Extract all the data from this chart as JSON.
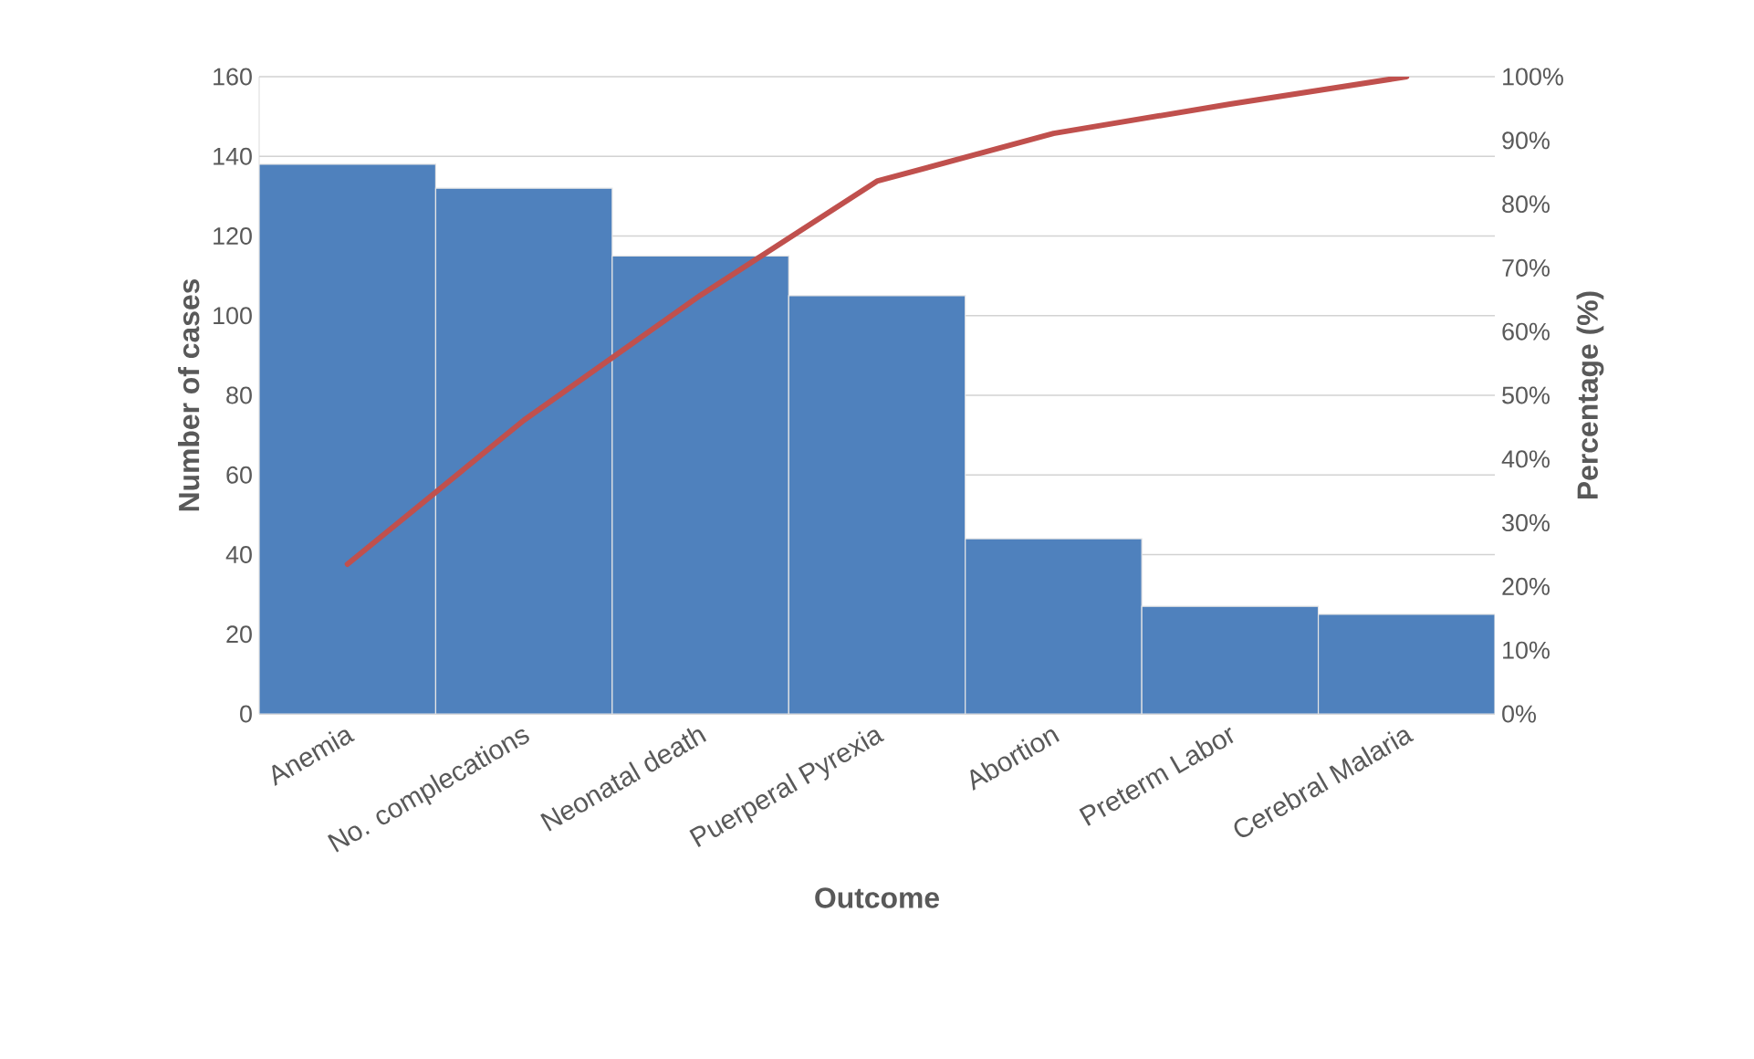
{
  "chart_data": {
    "type": "bar",
    "xlabel": "Outcome",
    "ylabel": "Number of cases",
    "y2label": "Percentage (%)",
    "categories": [
      "Anemia",
      "No. complecations",
      "Neonatal death",
      "Puerperal Pyrexia",
      "Abortion",
      "Preterm Labor",
      "Cerebral Malaria"
    ],
    "series": [
      {
        "color": "#4f81bd",
        "values": [
          138,
          132,
          115,
          105,
          44,
          27,
          25
        ]
      },
      {
        "type": "line",
        "axis": "y2",
        "color": "#c0504d",
        "values": [
          23.5,
          46.1,
          65.7,
          83.6,
          91.1,
          95.7,
          100
        ]
      }
    ],
    "ylim": [
      0,
      160
    ],
    "yticks": [
      0,
      20,
      40,
      60,
      80,
      100,
      120,
      140,
      160
    ],
    "y2lim": [
      0,
      100
    ],
    "y2ticks": [
      {
        "value": 0,
        "label": "0%"
      },
      {
        "value": 10,
        "label": "10%"
      },
      {
        "value": 20,
        "label": "20%"
      },
      {
        "value": 30,
        "label": "30%"
      },
      {
        "value": 40,
        "label": "40%"
      },
      {
        "value": 50,
        "label": "50%"
      },
      {
        "value": 60,
        "label": "60%"
      },
      {
        "value": 70,
        "label": "70%"
      },
      {
        "value": 80,
        "label": "80%"
      },
      {
        "value": 90,
        "label": "90%"
      },
      {
        "value": 100,
        "label": "100%"
      }
    ],
    "grid": "y",
    "marker": "none",
    "legend": false
  }
}
